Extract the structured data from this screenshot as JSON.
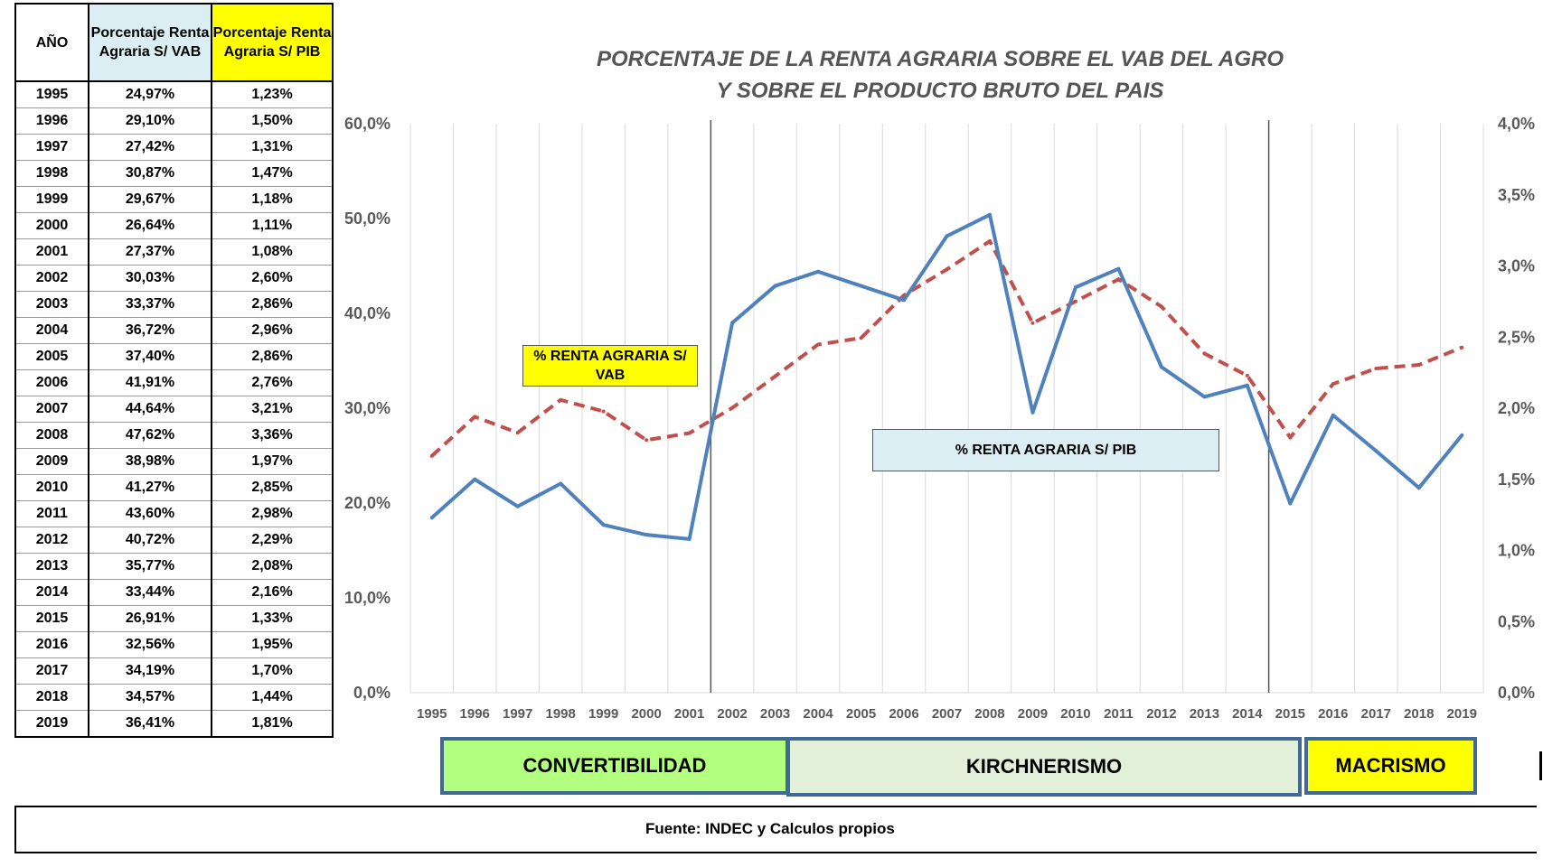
{
  "table": {
    "headers": [
      "AÑO",
      "Porcentaje Renta Agraria S/ VAB",
      "Porcentaje Renta Agraria S/ PIB"
    ],
    "rows": [
      [
        "1995",
        "24,97%",
        "1,23%"
      ],
      [
        "1996",
        "29,10%",
        "1,50%"
      ],
      [
        "1997",
        "27,42%",
        "1,31%"
      ],
      [
        "1998",
        "30,87%",
        "1,47%"
      ],
      [
        "1999",
        "29,67%",
        "1,18%"
      ],
      [
        "2000",
        "26,64%",
        "1,11%"
      ],
      [
        "2001",
        "27,37%",
        "1,08%"
      ],
      [
        "2002",
        "30,03%",
        "2,60%"
      ],
      [
        "2003",
        "33,37%",
        "2,86%"
      ],
      [
        "2004",
        "36,72%",
        "2,96%"
      ],
      [
        "2005",
        "37,40%",
        "2,86%"
      ],
      [
        "2006",
        "41,91%",
        "2,76%"
      ],
      [
        "2007",
        "44,64%",
        "3,21%"
      ],
      [
        "2008",
        "47,62%",
        "3,36%"
      ],
      [
        "2009",
        "38,98%",
        "1,97%"
      ],
      [
        "2010",
        "41,27%",
        "2,85%"
      ],
      [
        "2011",
        "43,60%",
        "2,98%"
      ],
      [
        "2012",
        "40,72%",
        "2,29%"
      ],
      [
        "2013",
        "35,77%",
        "2,08%"
      ],
      [
        "2014",
        "33,44%",
        "2,16%"
      ],
      [
        "2015",
        "26,91%",
        "1,33%"
      ],
      [
        "2016",
        "32,56%",
        "1,95%"
      ],
      [
        "2017",
        "34,19%",
        "1,70%"
      ],
      [
        "2018",
        "34,57%",
        "1,44%"
      ],
      [
        "2019",
        "36,41%",
        "1,81%"
      ]
    ]
  },
  "chart_data": {
    "type": "line",
    "title": "PORCENTAJE DE LA RENTA  AGRARIA SOBRE EL VAB DEL AGRO Y SOBRE EL PRODUCTO BRUTO DEL PAIS",
    "title_lines": [
      "PORCENTAJE DE LA RENTA  AGRARIA SOBRE EL VAB DEL AGRO",
      "Y SOBRE EL PRODUCTO BRUTO DEL PAIS"
    ],
    "categories": [
      "1995",
      "1996",
      "1997",
      "1998",
      "1999",
      "2000",
      "2001",
      "2002",
      "2003",
      "2004",
      "2005",
      "2006",
      "2007",
      "2008",
      "2009",
      "2010",
      "2011",
      "2012",
      "2013",
      "2014",
      "2015",
      "2016",
      "2017",
      "2018",
      "2019"
    ],
    "series": [
      {
        "name": "% RENTA AGRARIA S/ VAB",
        "axis": "left",
        "style": "dashed",
        "color": "#c0504d",
        "values": [
          24.97,
          29.1,
          27.42,
          30.87,
          29.67,
          26.64,
          27.37,
          30.03,
          33.37,
          36.72,
          37.4,
          41.91,
          44.64,
          47.62,
          38.98,
          41.27,
          43.6,
          40.72,
          35.77,
          33.44,
          26.91,
          32.56,
          34.19,
          34.57,
          36.41
        ]
      },
      {
        "name": "% RENTA AGRARIA S/ PIB",
        "axis": "right",
        "style": "solid",
        "color": "#4f81bd",
        "values": [
          1.23,
          1.5,
          1.31,
          1.47,
          1.18,
          1.11,
          1.08,
          2.6,
          2.86,
          2.96,
          2.86,
          2.76,
          3.21,
          3.36,
          1.97,
          2.85,
          2.98,
          2.29,
          2.08,
          2.16,
          1.33,
          1.95,
          1.7,
          1.44,
          1.81
        ]
      }
    ],
    "y_left": {
      "min": 0,
      "max": 60,
      "ticks": [
        "0,0%",
        "10,0%",
        "20,0%",
        "30,0%",
        "40,0%",
        "50,0%",
        "60,0%"
      ]
    },
    "y_right": {
      "min": 0,
      "max": 4,
      "ticks": [
        "0,0%",
        "0,5%",
        "1,0%",
        "1,5%",
        "2,0%",
        "2,5%",
        "3,0%",
        "3,5%",
        "4,0%"
      ]
    },
    "grid": "vertical",
    "dividers_after": [
      "2001",
      "2014"
    ]
  },
  "series_labels": {
    "vab": "% RENTA AGRARIA S/ VAB",
    "pib": "% RENTA AGRARIA S/ PIB"
  },
  "eras": {
    "convertibilidad": "CONVERTIBILIDAD",
    "kirchnerismo": "KIRCHNERISMO",
    "macrismo": "MACRISMO"
  },
  "footer": {
    "source": "Fuente: INDEC y Calculos propios"
  }
}
